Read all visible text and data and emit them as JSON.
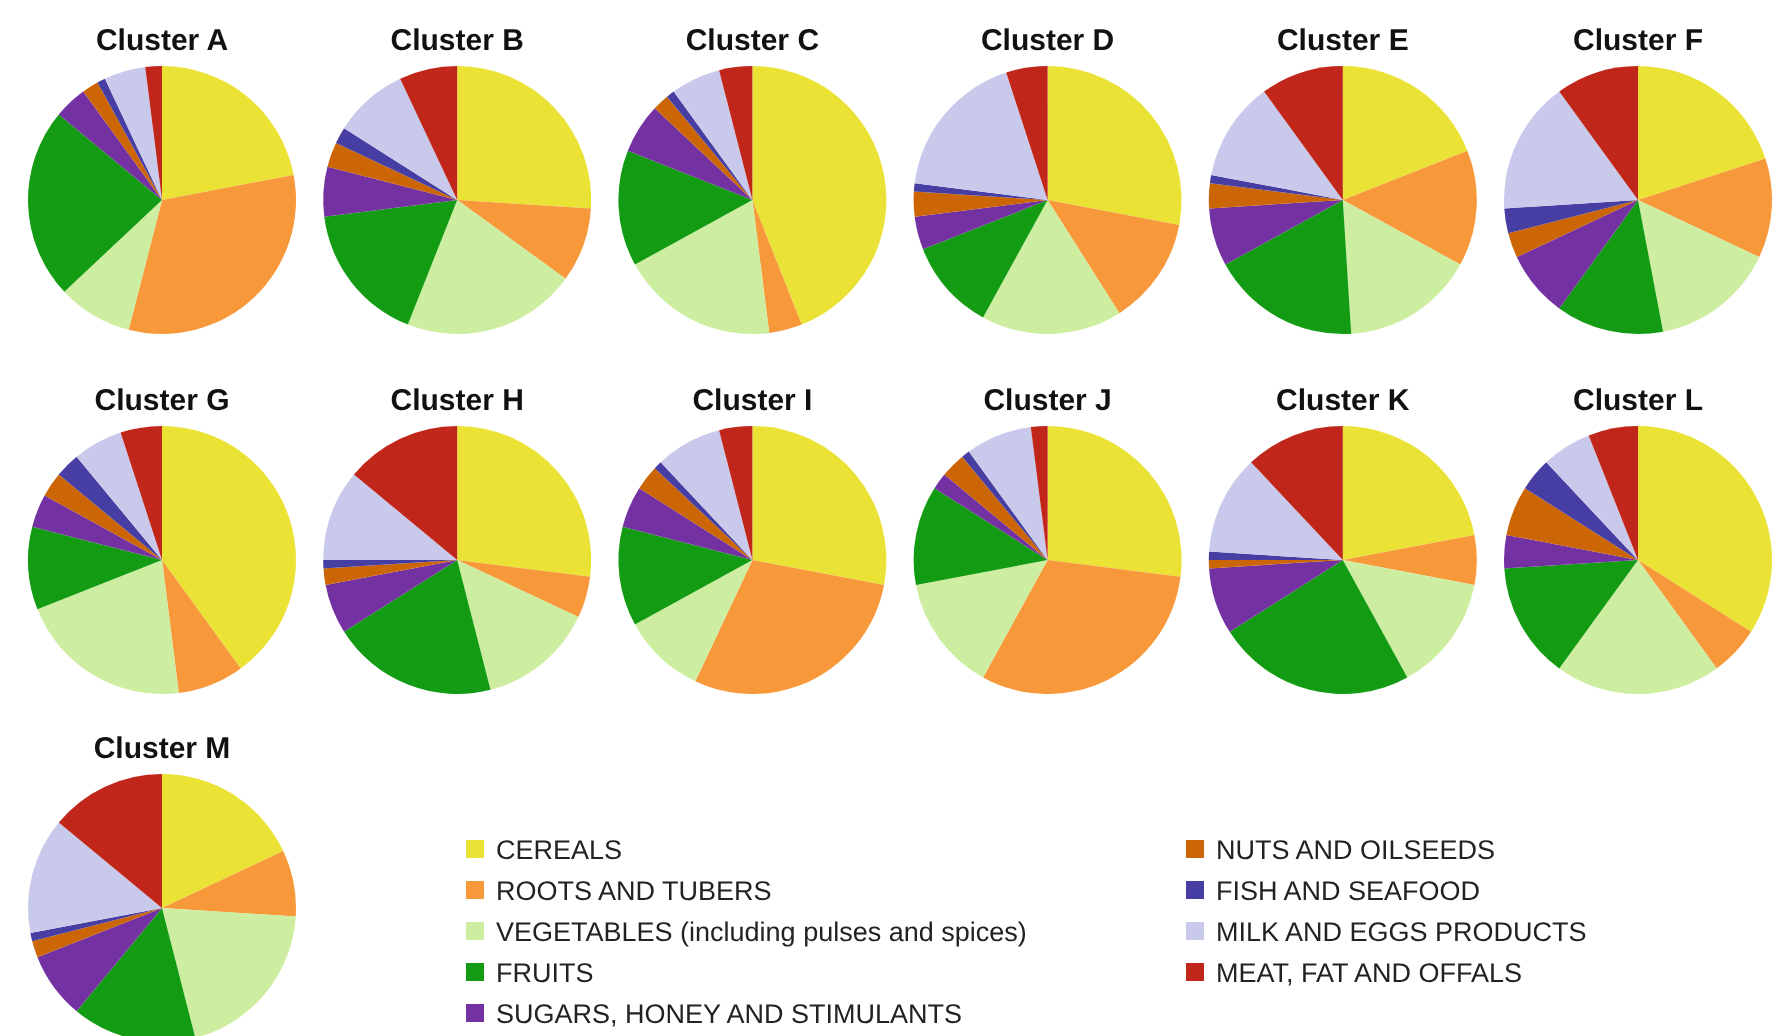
{
  "chart_data": [
    {
      "type": "pie",
      "title": "Cluster A",
      "categories": [
        null,
        null,
        null,
        null,
        null,
        null,
        null,
        null,
        null
      ],
      "values": [
        22,
        32,
        9,
        23,
        4,
        2,
        1,
        5,
        2
      ],
      "colors": [
        "#ebe236",
        "#f7993b",
        "#cdeea0",
        "#139c13",
        "#7331a1",
        "#cc6604",
        "#463ea2",
        "#c9c9ec",
        "#c1261a"
      ]
    },
    {
      "type": "pie",
      "title": "Cluster B",
      "categories": [
        null,
        null,
        null,
        null,
        null,
        null,
        null,
        null,
        null
      ],
      "values": [
        26,
        9,
        21,
        17,
        6,
        3,
        2,
        9,
        7
      ],
      "colors": [
        "#ebe236",
        "#f7993b",
        "#cdeea0",
        "#139c13",
        "#7331a1",
        "#cc6604",
        "#463ea2",
        "#c9c9ec",
        "#c1261a"
      ]
    },
    {
      "type": "pie",
      "title": "Cluster C",
      "categories": [
        null,
        null,
        null,
        null,
        null,
        null,
        null,
        null,
        null
      ],
      "values": [
        44,
        4,
        19,
        14,
        6,
        2,
        1,
        6,
        4
      ],
      "colors": [
        "#ebe236",
        "#f7993b",
        "#cdeea0",
        "#139c13",
        "#7331a1",
        "#cc6604",
        "#463ea2",
        "#c9c9ec",
        "#c1261a"
      ]
    },
    {
      "type": "pie",
      "title": "Cluster D",
      "categories": [
        null,
        null,
        null,
        null,
        null,
        null,
        null,
        null,
        null
      ],
      "values": [
        28,
        13,
        17,
        11,
        4,
        3,
        1,
        18,
        5
      ],
      "colors": [
        "#ebe236",
        "#f7993b",
        "#cdeea0",
        "#139c13",
        "#7331a1",
        "#cc6604",
        "#463ea2",
        "#c9c9ec",
        "#c1261a"
      ]
    },
    {
      "type": "pie",
      "title": "Cluster E",
      "categories": [
        null,
        null,
        null,
        null,
        null,
        null,
        null,
        null,
        null
      ],
      "values": [
        19,
        14,
        16,
        18,
        7,
        3,
        1,
        12,
        10
      ],
      "colors": [
        "#ebe236",
        "#f7993b",
        "#cdeea0",
        "#139c13",
        "#7331a1",
        "#cc6604",
        "#463ea2",
        "#c9c9ec",
        "#c1261a"
      ]
    },
    {
      "type": "pie",
      "title": "Cluster F",
      "categories": [
        null,
        null,
        null,
        null,
        null,
        null,
        null,
        null,
        null
      ],
      "values": [
        20,
        12,
        15,
        13,
        8,
        3,
        3,
        16,
        10
      ],
      "colors": [
        "#ebe236",
        "#f7993b",
        "#cdeea0",
        "#139c13",
        "#7331a1",
        "#cc6604",
        "#463ea2",
        "#c9c9ec",
        "#c1261a"
      ]
    },
    {
      "type": "pie",
      "title": "Cluster G",
      "categories": [
        null,
        null,
        null,
        null,
        null,
        null,
        null,
        null,
        null
      ],
      "values": [
        40,
        8,
        21,
        10,
        4,
        3,
        3,
        6,
        5
      ],
      "colors": [
        "#ebe236",
        "#f7993b",
        "#cdeea0",
        "#139c13",
        "#7331a1",
        "#cc6604",
        "#463ea2",
        "#c9c9ec",
        "#c1261a"
      ]
    },
    {
      "type": "pie",
      "title": "Cluster H",
      "categories": [
        null,
        null,
        null,
        null,
        null,
        null,
        null,
        null,
        null
      ],
      "values": [
        27,
        5,
        14,
        20,
        6,
        2,
        1,
        11,
        14
      ],
      "colors": [
        "#ebe236",
        "#f7993b",
        "#cdeea0",
        "#139c13",
        "#7331a1",
        "#cc6604",
        "#463ea2",
        "#c9c9ec",
        "#c1261a"
      ]
    },
    {
      "type": "pie",
      "title": "Cluster I",
      "categories": [
        null,
        null,
        null,
        null,
        null,
        null,
        null,
        null,
        null
      ],
      "values": [
        28,
        29,
        10,
        12,
        5,
        3,
        1,
        8,
        4
      ],
      "colors": [
        "#ebe236",
        "#f7993b",
        "#cdeea0",
        "#139c13",
        "#7331a1",
        "#cc6604",
        "#463ea2",
        "#c9c9ec",
        "#c1261a"
      ]
    },
    {
      "type": "pie",
      "title": "Cluster J",
      "categories": [
        null,
        null,
        null,
        null,
        null,
        null,
        null,
        null,
        null
      ],
      "values": [
        27,
        31,
        14,
        12,
        2,
        3,
        1,
        8,
        2
      ],
      "colors": [
        "#ebe236",
        "#f7993b",
        "#cdeea0",
        "#139c13",
        "#7331a1",
        "#cc6604",
        "#463ea2",
        "#c9c9ec",
        "#c1261a"
      ]
    },
    {
      "type": "pie",
      "title": "Cluster K",
      "categories": [
        null,
        null,
        null,
        null,
        null,
        null,
        null,
        null,
        null
      ],
      "values": [
        22,
        6,
        14,
        24,
        8,
        1,
        1,
        12,
        12
      ],
      "colors": [
        "#ebe236",
        "#f7993b",
        "#cdeea0",
        "#139c13",
        "#7331a1",
        "#cc6604",
        "#463ea2",
        "#c9c9ec",
        "#c1261a"
      ]
    },
    {
      "type": "pie",
      "title": "Cluster L",
      "categories": [
        null,
        null,
        null,
        null,
        null,
        null,
        null,
        null,
        null
      ],
      "values": [
        34,
        6,
        20,
        14,
        4,
        6,
        4,
        6,
        6
      ],
      "colors": [
        "#ebe236",
        "#f7993b",
        "#cdeea0",
        "#139c13",
        "#7331a1",
        "#cc6604",
        "#463ea2",
        "#c9c9ec",
        "#c1261a"
      ]
    },
    {
      "type": "pie",
      "title": "Cluster M",
      "categories": [
        "CEREALS",
        "ROOTS AND TUBERS",
        "VEGETABLES (including pulses and spices)",
        "FRUITS",
        "SUGARS, HONEY AND STIMULANTS",
        "NUTS AND OILSEEDS",
        "FISH AND SEAFOOD",
        "MILK AND EGGS PRODUCTS",
        "MEAT, FAT AND OFFALS"
      ],
      "values": [
        18,
        8,
        20,
        15,
        8,
        2,
        1,
        14,
        14
      ],
      "colors": [
        "#ebe236",
        "#f7993b",
        "#cdeea0",
        "#139c13",
        "#7331a1",
        "#cc6604",
        "#463ea2",
        "#c9c9ec",
        "#c1261a"
      ],
      "legend": "right"
    }
  ]
}
